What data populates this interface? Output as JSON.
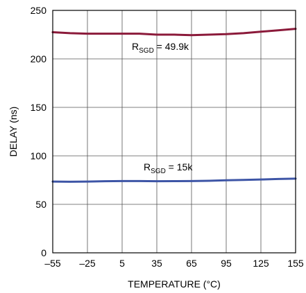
{
  "chart_data": {
    "type": "line",
    "title": "",
    "xlabel": "TEMPERATURE (°C)",
    "ylabel": "DELAY (ns)",
    "xlim": [
      -55,
      155
    ],
    "ylim": [
      0,
      250
    ],
    "grid": true,
    "x_ticks": [
      -55,
      -25,
      5,
      35,
      65,
      95,
      125,
      155
    ],
    "x_tick_labels": [
      "–55",
      "–25",
      "5",
      "35",
      "65",
      "95",
      "125",
      "155"
    ],
    "y_ticks": [
      0,
      50,
      100,
      150,
      200,
      250
    ],
    "y_tick_labels": [
      "0",
      "50",
      "100",
      "150",
      "200",
      "250"
    ],
    "series": [
      {
        "name": "RSGD = 49.9k",
        "label_main": "R",
        "label_sub": "SGD",
        "label_value": " = 49.9k",
        "color": "#8b1a3a",
        "x": [
          -55,
          -40,
          -25,
          -10,
          5,
          20,
          35,
          50,
          65,
          80,
          95,
          110,
          125,
          140,
          155
        ],
        "y": [
          227.5,
          226.5,
          226,
          226,
          226,
          226,
          225,
          225,
          224.5,
          225,
          225.5,
          226.5,
          228,
          229.5,
          231
        ]
      },
      {
        "name": "RSGD = 15k",
        "label_main": "R",
        "label_sub": "SGD",
        "label_value": " = 15k",
        "color": "#3d55a6",
        "x": [
          -55,
          -40,
          -25,
          -10,
          5,
          20,
          35,
          50,
          65,
          80,
          95,
          110,
          125,
          140,
          155
        ],
        "y": [
          73.5,
          73.3,
          73.5,
          73.8,
          74,
          74,
          73.8,
          73.9,
          74,
          74.3,
          74.8,
          75.2,
          75.6,
          76.2,
          76.5
        ]
      }
    ]
  }
}
